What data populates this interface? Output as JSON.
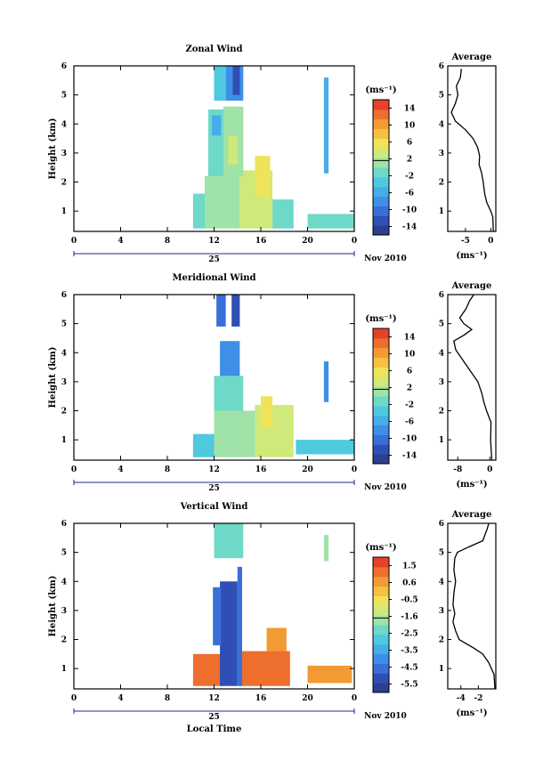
{
  "chart_data": [
    {
      "type": "heatmap",
      "title": "Zonal Wind",
      "ylabel": "Height (km)",
      "xticks": [
        "0",
        "4",
        "8",
        "12",
        "16",
        "20",
        "0"
      ],
      "date_label": "25",
      "month_label": "Nov 2010",
      "xlim": [
        0,
        24
      ],
      "ylim": [
        0.3,
        6
      ],
      "yticks": [
        "1",
        "2",
        "3",
        "4",
        "5",
        "6"
      ],
      "colorbar": {
        "unit": "(ms⁻¹)",
        "range": [
          -16,
          16
        ],
        "ticks": [
          "14",
          "10",
          "6",
          "2",
          "-2",
          "-6",
          "-10",
          "-14"
        ]
      },
      "profile": {
        "title": "Average",
        "xlabel": "(ms⁻¹)",
        "xticks": [
          "-5",
          "0"
        ],
        "xlim": [
          -8.5,
          1
        ],
        "points": [
          [
            0.5,
            0.3
          ],
          [
            0.4,
            0.8
          ],
          [
            0.0,
            1.0
          ],
          [
            -0.8,
            1.3
          ],
          [
            -1.2,
            1.6
          ],
          [
            -1.5,
            2.0
          ],
          [
            -1.8,
            2.3
          ],
          [
            -2.3,
            2.6
          ],
          [
            -2.2,
            2.9
          ],
          [
            -2.6,
            3.2
          ],
          [
            -3.5,
            3.5
          ],
          [
            -5.0,
            3.8
          ],
          [
            -7.0,
            4.1
          ],
          [
            -7.8,
            4.4
          ],
          [
            -7.0,
            4.7
          ],
          [
            -6.5,
            5.0
          ],
          [
            -6.8,
            5.3
          ],
          [
            -6.0,
            5.6
          ],
          [
            -5.8,
            5.9
          ]
        ]
      },
      "series": [
        {
          "t": [
            10.2,
            11.2
          ],
          "h": [
            0.4,
            1.6
          ],
          "v": -1
        },
        {
          "t": [
            11.2,
            14.2
          ],
          "h": [
            0.4,
            2.2
          ],
          "v": 1
        },
        {
          "t": [
            14.2,
            17
          ],
          "h": [
            0.4,
            2.4
          ],
          "v": 3
        },
        {
          "t": [
            15.5,
            16.8
          ],
          "h": [
            1.5,
            2.9
          ],
          "v": 5
        },
        {
          "t": [
            17,
            18.8
          ],
          "h": [
            0.4,
            1.4
          ],
          "v": -1
        },
        {
          "t": [
            11.5,
            12.8
          ],
          "h": [
            2.2,
            4.5
          ],
          "v": -2
        },
        {
          "t": [
            12.8,
            14.5
          ],
          "h": [
            2.2,
            4.6
          ],
          "v": 1
        },
        {
          "t": [
            11.8,
            12.6
          ],
          "h": [
            3.6,
            4.3
          ],
          "v": -6
        },
        {
          "t": [
            13.2,
            14
          ],
          "h": [
            2.6,
            3.6
          ],
          "v": 3
        },
        {
          "t": [
            12,
            13
          ],
          "h": [
            4.8,
            6
          ],
          "v": -4
        },
        {
          "t": [
            13,
            14.5
          ],
          "h": [
            4.8,
            6
          ],
          "v": -9
        },
        {
          "t": [
            13.6,
            14.2
          ],
          "h": [
            5,
            6
          ],
          "v": -13
        },
        {
          "t": [
            21.4,
            21.8
          ],
          "h": [
            2.3,
            5.6
          ],
          "v": -5
        },
        {
          "t": [
            20,
            24
          ],
          "h": [
            0.4,
            0.9
          ],
          "v": -2
        }
      ]
    },
    {
      "type": "heatmap",
      "title": "Meridional Wind",
      "ylabel": "Height (km)",
      "xticks": [
        "0",
        "4",
        "8",
        "12",
        "16",
        "20",
        "0"
      ],
      "date_label": "25",
      "month_label": "Nov 2010",
      "xlim": [
        0,
        24
      ],
      "ylim": [
        0.3,
        6
      ],
      "yticks": [
        "1",
        "2",
        "3",
        "4",
        "5",
        "6"
      ],
      "colorbar": {
        "unit": "(ms⁻¹)",
        "range": [
          -16,
          16
        ],
        "ticks": [
          "14",
          "10",
          "6",
          "2",
          "-2",
          "-6",
          "-10",
          "-14"
        ]
      },
      "profile": {
        "title": "Average",
        "xlabel": "(ms⁻¹)",
        "xticks": [
          "-8",
          "0"
        ],
        "xlim": [
          -10.5,
          1.5
        ],
        "points": [
          [
            0.5,
            0.3
          ],
          [
            0.2,
            1.0
          ],
          [
            0.3,
            1.6
          ],
          [
            -0.8,
            2.0
          ],
          [
            -1.5,
            2.3
          ],
          [
            -2.0,
            2.6
          ],
          [
            -3.0,
            3.0
          ],
          [
            -4.5,
            3.3
          ],
          [
            -6.5,
            3.7
          ],
          [
            -8.5,
            4.1
          ],
          [
            -9.0,
            4.4
          ],
          [
            -6.5,
            4.6
          ],
          [
            -4.5,
            4.8
          ],
          [
            -6.5,
            5.0
          ],
          [
            -7.5,
            5.2
          ],
          [
            -6.0,
            5.5
          ],
          [
            -5.0,
            5.8
          ],
          [
            -4.0,
            6.0
          ]
        ]
      },
      "series": [
        {
          "t": [
            10.2,
            12
          ],
          "h": [
            0.4,
            1.2
          ],
          "v": -4
        },
        {
          "t": [
            12,
            15.5
          ],
          "h": [
            0.4,
            2.0
          ],
          "v": 1
        },
        {
          "t": [
            15.5,
            18.8
          ],
          "h": [
            0.4,
            2.2
          ],
          "v": 3
        },
        {
          "t": [
            16,
            17
          ],
          "h": [
            1.4,
            2.5
          ],
          "v": 6
        },
        {
          "t": [
            12,
            14.5
          ],
          "h": [
            2.0,
            3.2
          ],
          "v": -1
        },
        {
          "t": [
            12.5,
            14.2
          ],
          "h": [
            3.2,
            4.4
          ],
          "v": -7
        },
        {
          "t": [
            12.2,
            13
          ],
          "h": [
            4.9,
            6
          ],
          "v": -10
        },
        {
          "t": [
            13.5,
            14.2
          ],
          "h": [
            4.9,
            6
          ],
          "v": -12
        },
        {
          "t": [
            21.4,
            21.8
          ],
          "h": [
            2.3,
            3.7
          ],
          "v": -7
        },
        {
          "t": [
            19,
            24
          ],
          "h": [
            0.5,
            1.0
          ],
          "v": -3
        }
      ]
    },
    {
      "type": "heatmap",
      "title": "Vertical Wind",
      "ylabel": "Height (km)",
      "xticks": [
        "0",
        "4",
        "8",
        "12",
        "16",
        "20",
        "0"
      ],
      "date_label": "25",
      "month_label": "Nov 2010",
      "xlabel": "Local Time",
      "xlim": [
        0,
        24
      ],
      "ylim": [
        0.3,
        6
      ],
      "yticks": [
        "1",
        "2",
        "3",
        "4",
        "5",
        "6"
      ],
      "colorbar": {
        "unit": "(ms⁻¹)",
        "range": [
          -6,
          2
        ],
        "ticks": [
          "1.5",
          "0.6",
          "-0.5",
          "-1.6",
          "-2.5",
          "-3.5",
          "-4.5",
          "-5.5"
        ]
      },
      "profile": {
        "title": "Average",
        "xlabel": "(ms⁻¹)",
        "xticks": [
          "-4",
          "-2"
        ],
        "xlim": [
          -5.5,
          0
        ],
        "points": [
          [
            -0.1,
            0.3
          ],
          [
            -0.2,
            0.8
          ],
          [
            -0.8,
            1.2
          ],
          [
            -1.5,
            1.5
          ],
          [
            -2.5,
            1.7
          ],
          [
            -4.2,
            2.0
          ],
          [
            -4.6,
            2.3
          ],
          [
            -4.9,
            2.6
          ],
          [
            -4.7,
            2.9
          ],
          [
            -4.9,
            3.2
          ],
          [
            -4.8,
            3.6
          ],
          [
            -4.6,
            4.0
          ],
          [
            -4.8,
            4.4
          ],
          [
            -4.7,
            4.8
          ],
          [
            -4.4,
            5.0
          ],
          [
            -3.0,
            5.2
          ],
          [
            -1.5,
            5.4
          ],
          [
            -1.0,
            5.8
          ],
          [
            -0.8,
            6.0
          ]
        ]
      },
      "series": [
        {
          "t": [
            10.2,
            12.8
          ],
          "h": [
            0.4,
            1.5
          ],
          "v": 1.0
        },
        {
          "t": [
            14.2,
            18.5
          ],
          "h": [
            0.4,
            1.6
          ],
          "v": 1.1
        },
        {
          "t": [
            16.5,
            18.2
          ],
          "h": [
            1.6,
            2.4
          ],
          "v": 0.5
        },
        {
          "t": [
            20,
            23.8
          ],
          "h": [
            0.5,
            1.1
          ],
          "v": 0.8
        },
        {
          "t": [
            12.5,
            14
          ],
          "h": [
            0.4,
            4.0
          ],
          "v": -5.3
        },
        {
          "t": [
            14,
            14.4
          ],
          "h": [
            0.4,
            4.5
          ],
          "v": -4.5
        },
        {
          "t": [
            11.9,
            12.6
          ],
          "h": [
            1.8,
            3.8
          ],
          "v": -4.8
        },
        {
          "t": [
            12,
            14.5
          ],
          "h": [
            4.8,
            6
          ],
          "v": -2.2
        },
        {
          "t": [
            21.4,
            21.8
          ],
          "h": [
            4.7,
            5.6
          ],
          "v": -2.0
        }
      ]
    }
  ]
}
